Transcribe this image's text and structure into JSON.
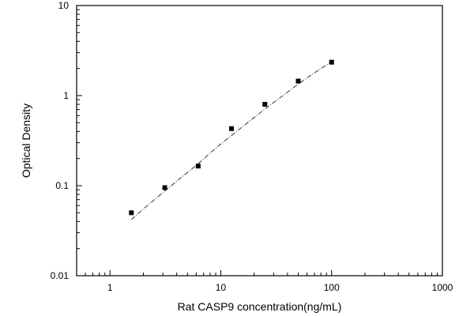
{
  "chart_data": {
    "type": "scatter",
    "xlabel": "Rat CASP9 concentration(ng/mL)",
    "ylabel": "Optical Density",
    "xscale": "log",
    "yscale": "log",
    "xlim": [
      0.5,
      1000
    ],
    "ylim": [
      0.01,
      10
    ],
    "x_ticks": [
      1,
      10,
      100,
      1000
    ],
    "x_tick_labels": [
      "1",
      "10",
      "100",
      "1000"
    ],
    "y_ticks": [
      0.01,
      0.1,
      1,
      10
    ],
    "y_tick_labels": [
      "0.01",
      "0.1",
      "1",
      "10"
    ],
    "grid": false,
    "series": [
      {
        "marker": "square",
        "x": [
          1.56,
          3.12,
          6.25,
          12.5,
          25,
          50,
          100
        ],
        "y": [
          0.05,
          0.095,
          0.165,
          0.43,
          0.8,
          1.45,
          2.35
        ]
      }
    ],
    "fit_curve": {
      "style": "dash-dot",
      "x": [
        1.56,
        2,
        3.12,
        5,
        6.25,
        8,
        10,
        12.5,
        16,
        20,
        25,
        32,
        40,
        50,
        64,
        80,
        100
      ],
      "y": [
        0.042,
        0.055,
        0.087,
        0.14,
        0.175,
        0.23,
        0.29,
        0.36,
        0.46,
        0.57,
        0.71,
        0.89,
        1.09,
        1.34,
        1.66,
        2.0,
        2.35
      ]
    },
    "colors": {
      "axis": "#000000",
      "marker": "#000000",
      "fit": "#333333"
    }
  }
}
